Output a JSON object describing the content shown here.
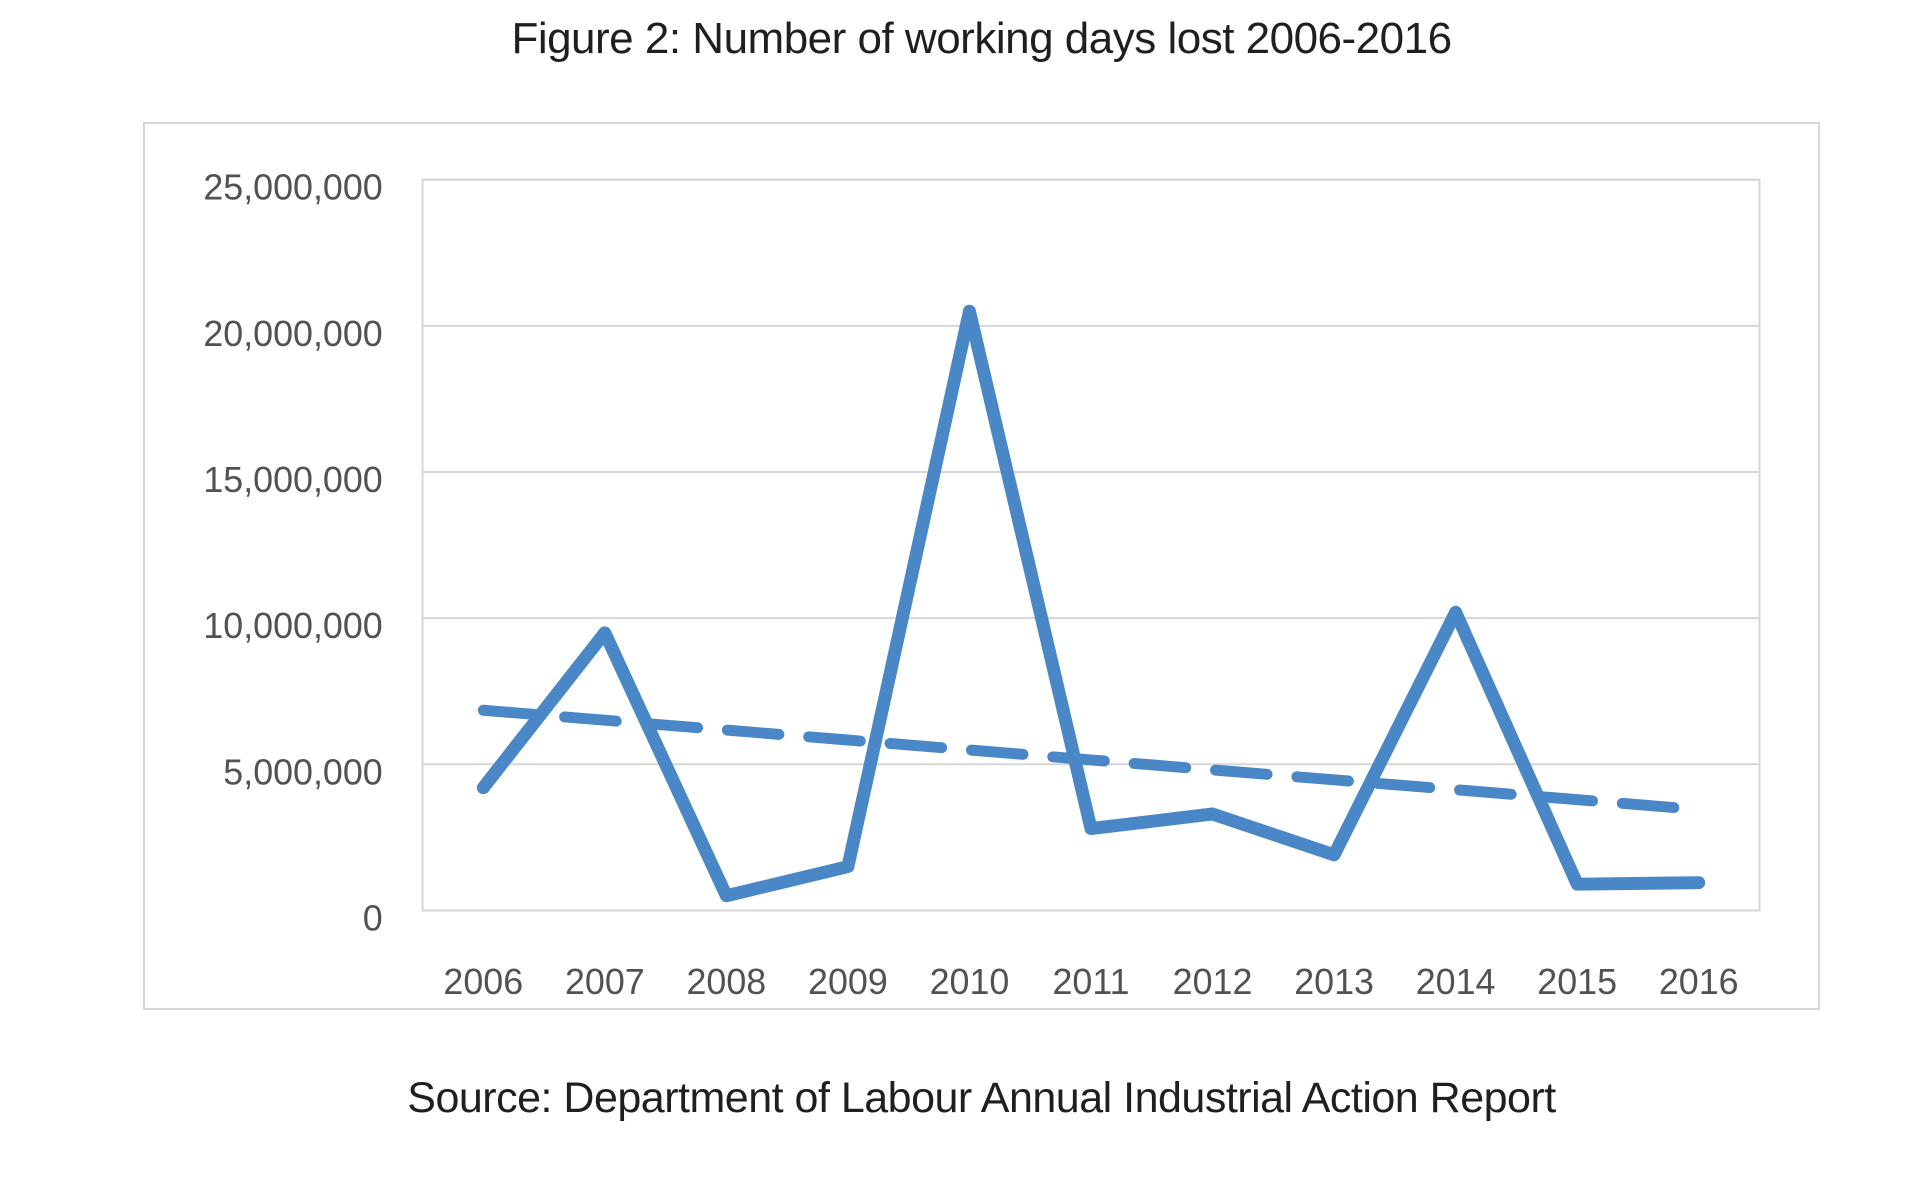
{
  "page": {
    "title": "Figure 2: Number of working days lost 2006-2016",
    "source": "Source: Department of Labour Annual Industrial Action Report"
  },
  "chart_data": {
    "type": "line",
    "title": "Figure 2: Number of working days lost 2006-2016",
    "categories": [
      "2006",
      "2007",
      "2008",
      "2009",
      "2010",
      "2011",
      "2012",
      "2013",
      "2014",
      "2015",
      "2016"
    ],
    "series": [
      {
        "name": "working-days-lost",
        "style": "solid",
        "values": [
          4200000,
          9500000,
          500000,
          1500000,
          20500000,
          2800000,
          3300000,
          1900000,
          10200000,
          900000,
          950000
        ]
      },
      {
        "name": "linear-trendline",
        "style": "dashed",
        "values": [
          6850000,
          6510000,
          6170000,
          5830000,
          5490000,
          5150000,
          4810000,
          4470000,
          4130000,
          3790000,
          3450000
        ]
      }
    ],
    "ylim": [
      0,
      25000000
    ],
    "y_tick_step": 5000000,
    "y_ticks": [
      "0",
      "5,000,000",
      "10,000,000",
      "15,000,000",
      "20,000,000",
      "25,000,000"
    ],
    "xlabel": "",
    "ylabel": "",
    "grid": "horizontal",
    "legend": "none",
    "colors": {
      "line": "#4a87c7",
      "trend": "#4a87c7",
      "gridline": "#d6d6d6",
      "plot_border": "#d6d6d6",
      "tick_label": "#525252"
    }
  }
}
